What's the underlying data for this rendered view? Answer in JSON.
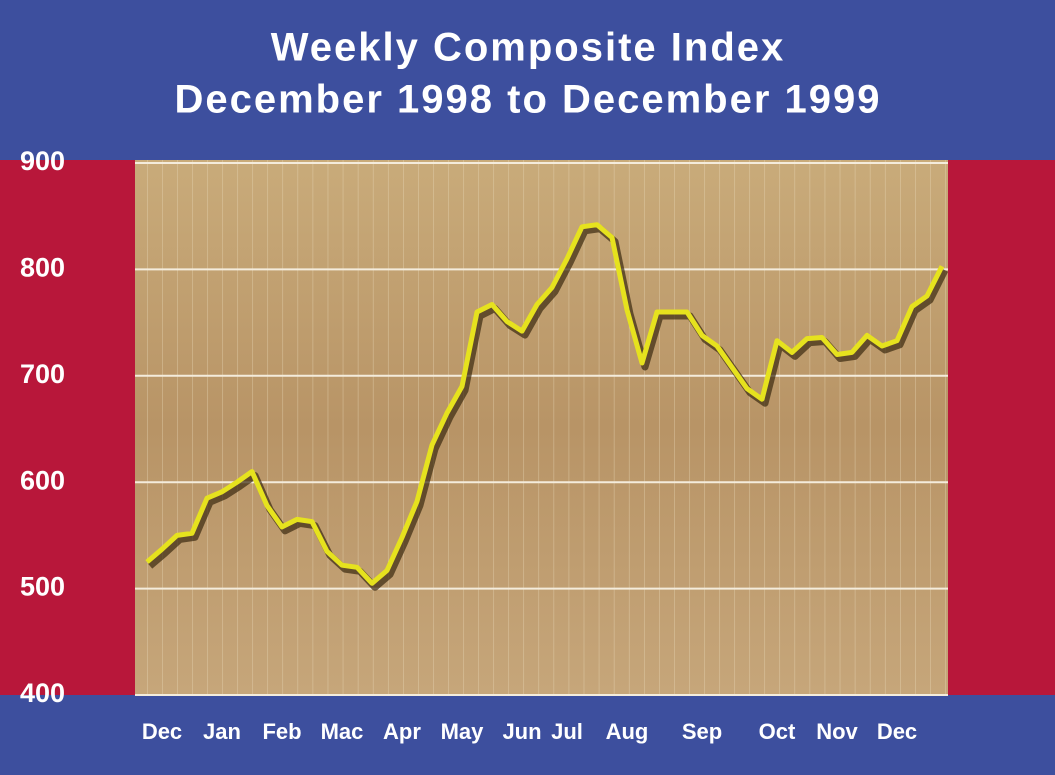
{
  "chart_data": {
    "type": "line",
    "title": "Weekly Composite Index",
    "subtitle": "December 1998 to December 1999",
    "categories": [
      null,
      "Dec",
      null,
      null,
      null,
      "Jan",
      null,
      null,
      null,
      "Feb",
      null,
      null,
      null,
      "Mac",
      null,
      null,
      null,
      "Apr",
      null,
      null,
      null,
      "May",
      null,
      null,
      null,
      "Jun",
      null,
      null,
      "Jul",
      null,
      null,
      null,
      "Aug",
      null,
      null,
      null,
      null,
      "Sep",
      null,
      null,
      null,
      null,
      "Oct",
      null,
      null,
      null,
      "Nov",
      null,
      null,
      null,
      "Dec",
      null,
      null,
      null
    ],
    "values": [
      525,
      537,
      550,
      552,
      585,
      591,
      600,
      610,
      578,
      558,
      565,
      563,
      535,
      522,
      520,
      505,
      517,
      548,
      582,
      635,
      665,
      690,
      760,
      767,
      751,
      742,
      767,
      783,
      810,
      840,
      842,
      830,
      762,
      712,
      760,
      760,
      760,
      738,
      728,
      708,
      688,
      678,
      733,
      722,
      735,
      736,
      720,
      722,
      738,
      728,
      733,
      765,
      775,
      803
    ],
    "color": "#e6e21e",
    "ylim": [
      400,
      900
    ],
    "yticks": [
      400,
      500,
      600,
      700,
      800,
      900
    ],
    "grid": true
  }
}
